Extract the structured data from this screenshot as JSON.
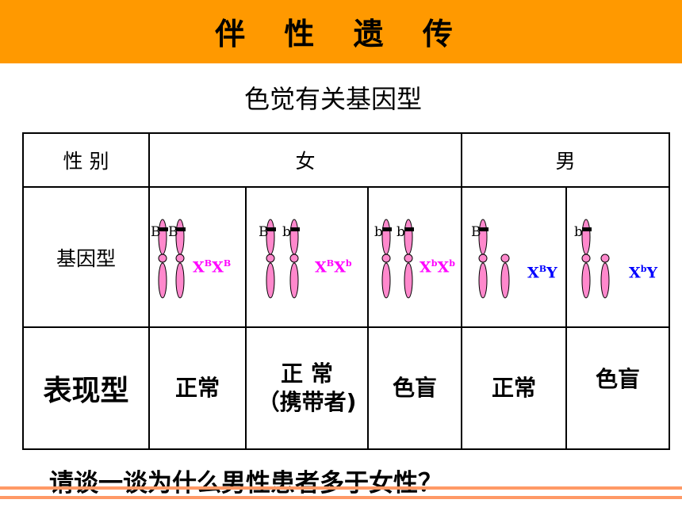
{
  "title": "伴 性 遗 传",
  "subtitle": "色觉有关基因型",
  "table": {
    "header": {
      "sex_label": "性    别",
      "female": "女",
      "male": "男"
    },
    "genotype_label": "基因型",
    "phenotype_label": "表现型",
    "columns": [
      {
        "alleles": [
          "B",
          "B"
        ],
        "geno_base": [
          "X",
          "X"
        ],
        "geno_sup": [
          "B",
          "B"
        ],
        "geno_tail": "",
        "color": "#ff00ff",
        "phenotype": "正常",
        "phenotype_note": ""
      },
      {
        "alleles": [
          "B",
          "b"
        ],
        "geno_base": [
          "X",
          "X"
        ],
        "geno_sup": [
          "B",
          "b"
        ],
        "geno_tail": "",
        "color": "#ff00ff",
        "phenotype": "正 常",
        "phenotype_note": "（携带者)"
      },
      {
        "alleles": [
          "b",
          "b"
        ],
        "geno_base": [
          "X",
          "X"
        ],
        "geno_sup": [
          "b",
          "b"
        ],
        "geno_tail": "",
        "color": "#ff00ff",
        "phenotype": "色盲",
        "phenotype_note": ""
      },
      {
        "alleles": [
          "B",
          ""
        ],
        "geno_base": [
          "X",
          ""
        ],
        "geno_sup": [
          "B",
          ""
        ],
        "geno_tail": "Y",
        "color": "#0000ff",
        "phenotype": "正常",
        "phenotype_note": ""
      },
      {
        "alleles": [
          "b",
          ""
        ],
        "geno_base": [
          "X",
          ""
        ],
        "geno_sup": [
          "b",
          ""
        ],
        "geno_tail": "Y",
        "color": "#0000ff",
        "phenotype": "色盲",
        "phenotype_note": ""
      }
    ]
  },
  "question": "请谈一谈为什么男性患者多于女性？",
  "colors": {
    "title_bar": "#ff9900",
    "female_genotype": "#ff00ff",
    "male_genotype": "#0000ff",
    "chromosome": "#ff88cc",
    "bottom_lines": "#ff9966"
  }
}
